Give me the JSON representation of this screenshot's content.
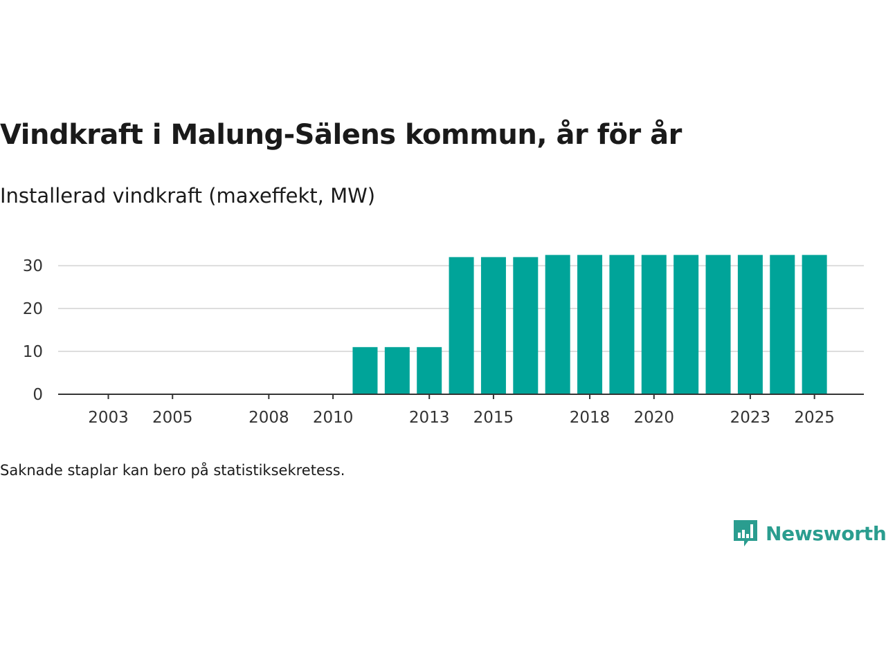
{
  "title": "Vindkraft i Malung-Sälens kommun, år för år",
  "subtitle": "Installerad vindkraft (maxeffekt, MW)",
  "note": "Saknade staplar kan bero på statistiksekretess.",
  "brand": {
    "name": "Newsworthy",
    "color": "#2a9d8f",
    "icon": "newsworthy-logo-icon"
  },
  "colors": {
    "bar": "#00a499",
    "grid": "#dddddd",
    "axis": "#333333"
  },
  "chart_data": {
    "type": "bar",
    "title": "Vindkraft i Malung-Sälens kommun, år för år",
    "ylabel": "Installerad vindkraft (maxeffekt, MW)",
    "xlabel": "",
    "ylim": [
      0,
      33
    ],
    "yticks": [
      0,
      10,
      20,
      30
    ],
    "xticks": [
      "2003",
      "2005",
      "2008",
      "2010",
      "2013",
      "2015",
      "2018",
      "2020",
      "2023",
      "2025"
    ],
    "grid": true,
    "categories": [
      "2002",
      "2003",
      "2004",
      "2005",
      "2006",
      "2007",
      "2008",
      "2009",
      "2010",
      "2011",
      "2012",
      "2013",
      "2014",
      "2015",
      "2016",
      "2017",
      "2018",
      "2019",
      "2020",
      "2021",
      "2022",
      "2023",
      "2024",
      "2025"
    ],
    "values": [
      0,
      0,
      0,
      0,
      0,
      0,
      0,
      0,
      0,
      11,
      11,
      11,
      32,
      32,
      32,
      32.5,
      32.5,
      32.5,
      32.5,
      32.5,
      32.5,
      32.5,
      32.5,
      32.5
    ]
  }
}
